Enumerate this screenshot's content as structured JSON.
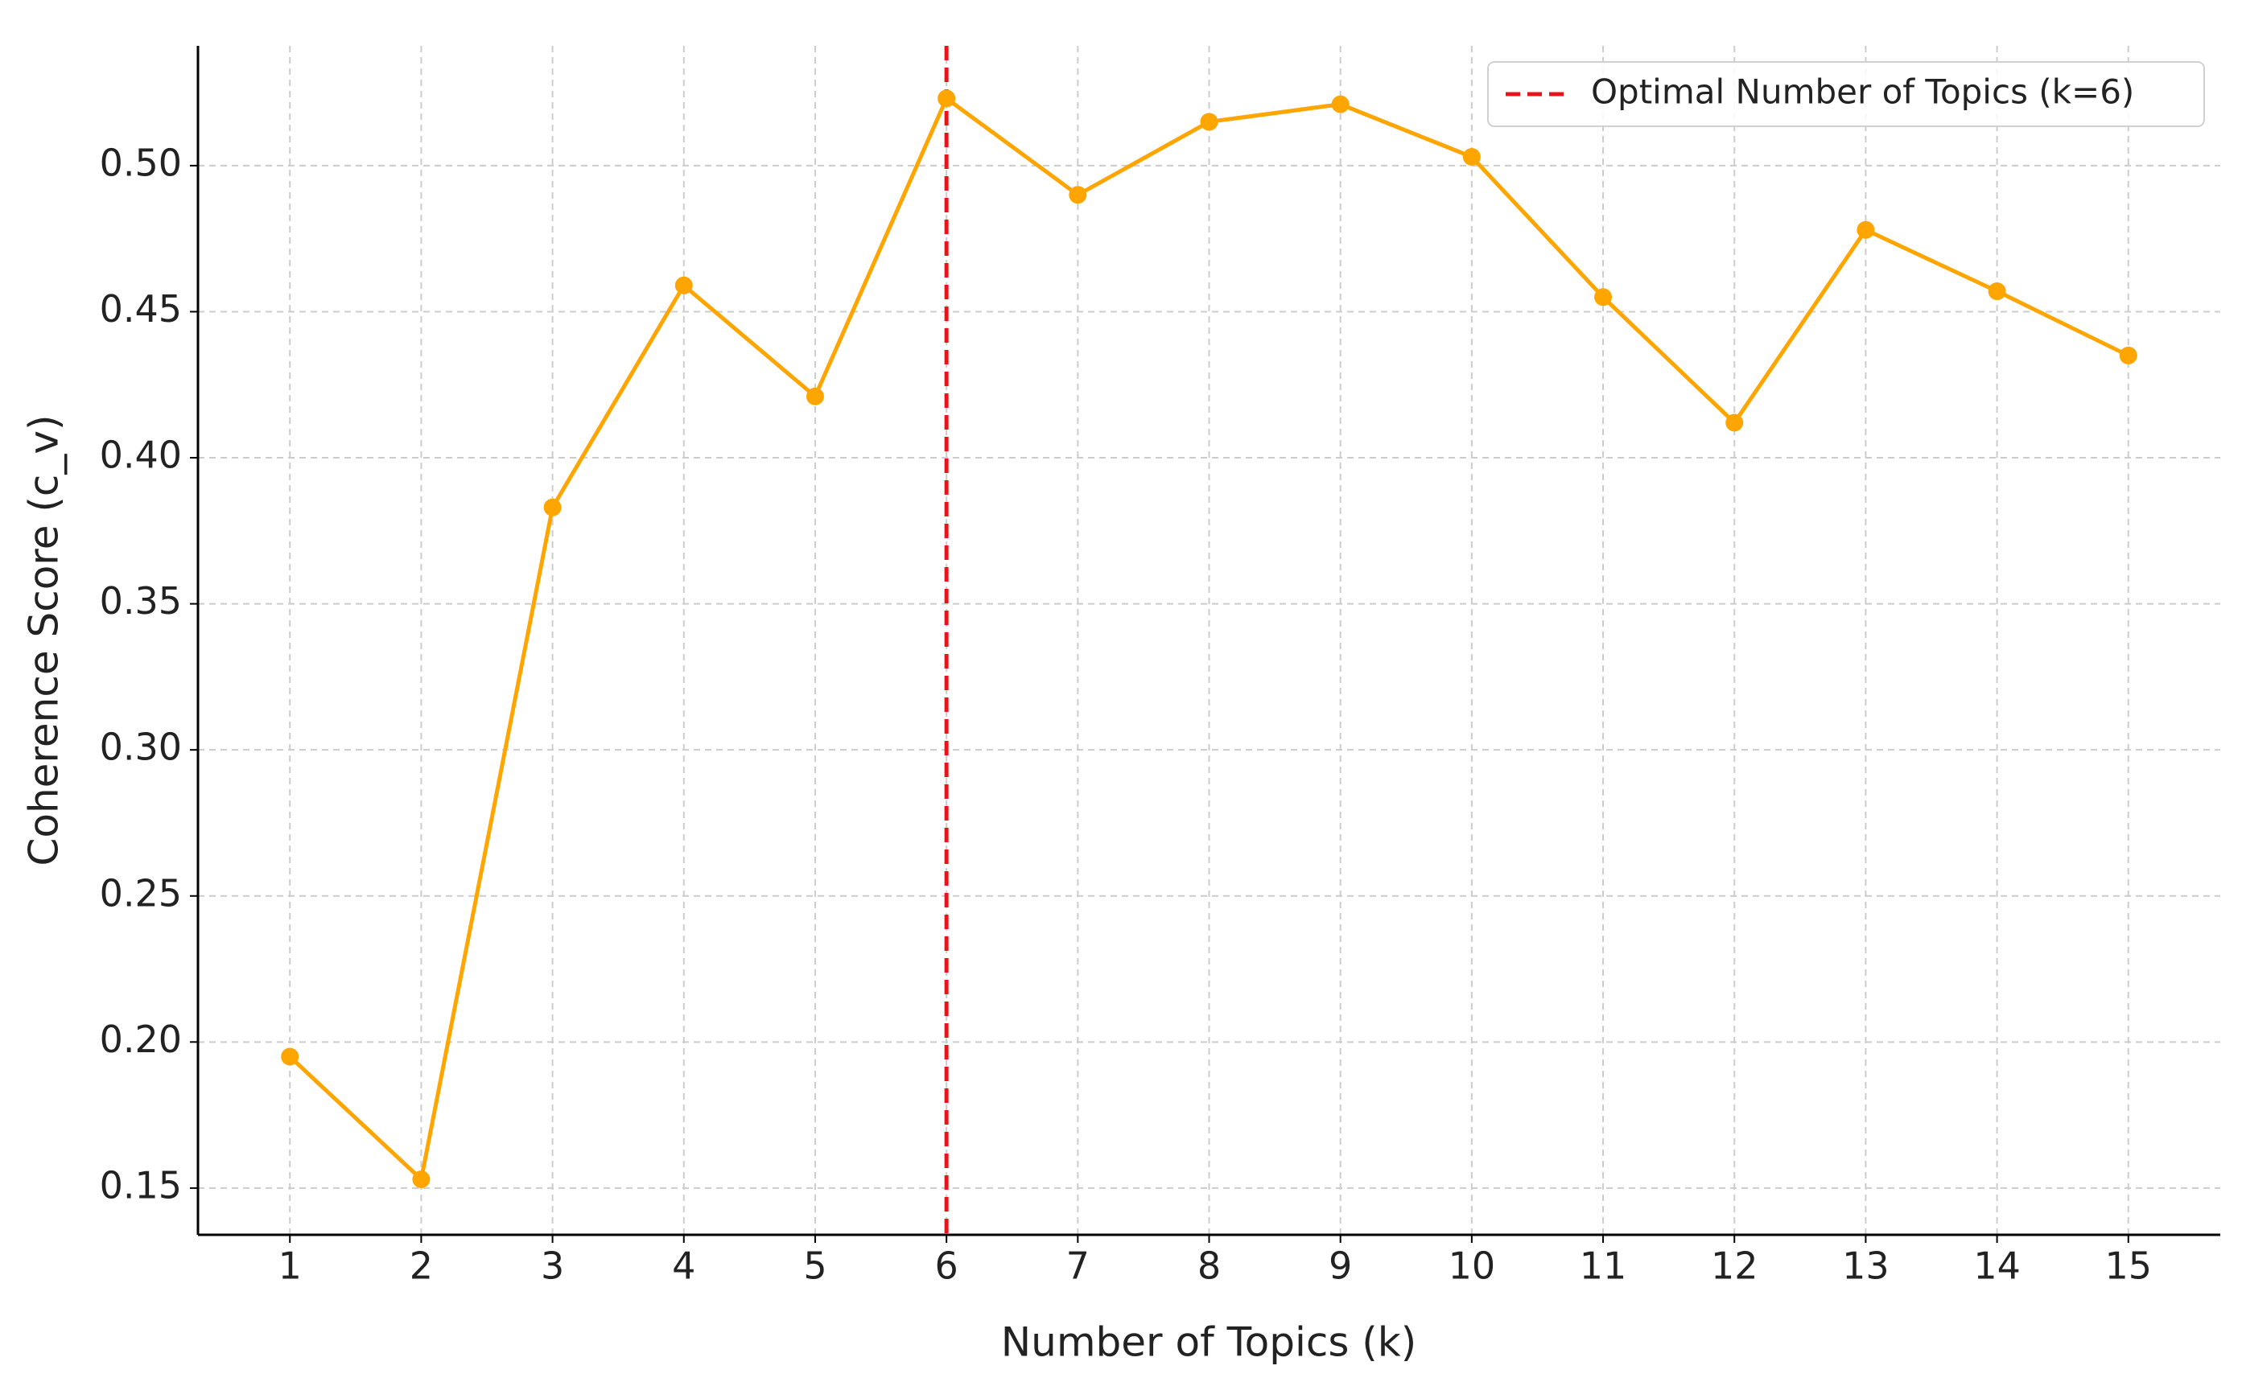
{
  "chart_data": {
    "type": "line",
    "xlabel": "Number of Topics (k)",
    "ylabel": "Coherence Score (c_v)",
    "x": [
      1,
      2,
      3,
      4,
      5,
      6,
      7,
      8,
      9,
      10,
      11,
      12,
      13,
      14,
      15
    ],
    "series": [
      {
        "color": "#ffa500",
        "values": [
          0.195,
          0.153,
          0.383,
          0.459,
          0.421,
          0.523,
          0.49,
          0.515,
          0.521,
          0.503,
          0.455,
          0.412,
          0.478,
          0.457,
          0.435
        ]
      }
    ],
    "vline": {
      "x": 6,
      "label": "Optimal Number of Topics (k=6)",
      "color": "#e8141a"
    },
    "xlim": [
      0.3,
      15.7
    ],
    "ylim": [
      0.134,
      0.541
    ],
    "xticks": [
      1,
      2,
      3,
      4,
      5,
      6,
      7,
      8,
      9,
      10,
      11,
      12,
      13,
      14,
      15
    ],
    "yticks": [
      0.15,
      {
        "value": 0.2,
        "label": "0.20"
      },
      0.25,
      {
        "value": 0.3,
        "label": "0.30"
      },
      0.35,
      {
        "value": 0.4,
        "label": "0.40"
      },
      0.45,
      {
        "value": 0.5,
        "label": "0.50"
      }
    ],
    "grid": true,
    "legend": "upper right"
  }
}
